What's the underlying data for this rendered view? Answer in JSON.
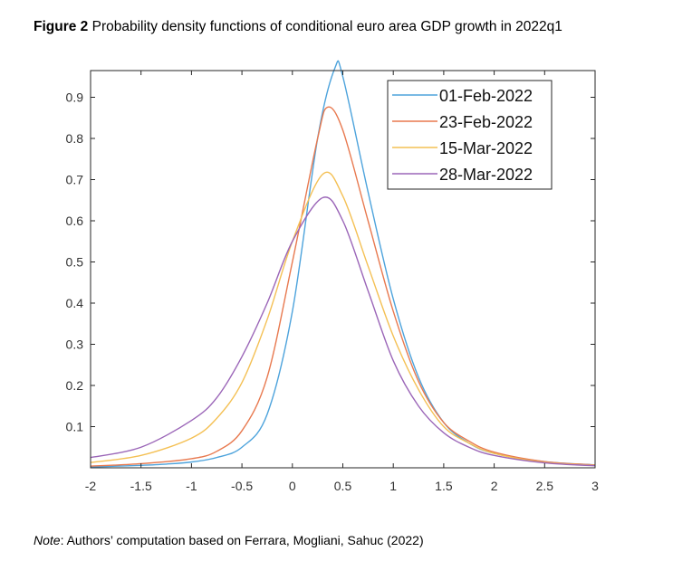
{
  "title": {
    "label": "Figure 2",
    "text": " Probability density functions of conditional euro area GDP growth in 2022q1"
  },
  "note": {
    "label": "Note",
    "text": ": Authors’ computation based on Ferrara, Mogliani, Sahuc (2022)"
  },
  "chart_data": {
    "type": "line",
    "title": "Probability density functions of conditional euro area GDP growth in 2022q1",
    "xlabel": "",
    "ylabel": "",
    "xlim": [
      -2,
      3
    ],
    "ylim": [
      0,
      0.965
    ],
    "xticks": [
      -2,
      -1.5,
      -1,
      -0.5,
      0,
      0.5,
      1,
      1.5,
      2,
      2.5,
      3
    ],
    "xtick_labels": [
      "-2",
      "-1.5",
      "-1",
      "-0.5",
      "0",
      "0.5",
      "1",
      "1.5",
      "2",
      "2.5",
      "3"
    ],
    "yticks": [
      0.1,
      0.2,
      0.3,
      0.4,
      0.5,
      0.6,
      0.7,
      0.8,
      0.9
    ],
    "ytick_labels": [
      "0.1",
      "0.2",
      "0.3",
      "0.4",
      "0.5",
      "0.6",
      "0.7",
      "0.8",
      "0.9"
    ],
    "grid": false,
    "legend_position": "top-right",
    "series": [
      {
        "name": "01-Feb-2022",
        "color": "#4da3dc",
        "x": [
          -2,
          -1.75,
          -1.5,
          -1.25,
          -1,
          -0.75,
          -0.5,
          -0.25,
          0,
          0.25,
          0.42,
          0.5,
          0.75,
          1,
          1.25,
          1.5,
          1.75,
          2,
          2.5,
          3
        ],
        "y": [
          0.002,
          0.004,
          0.006,
          0.009,
          0.014,
          0.025,
          0.05,
          0.13,
          0.38,
          0.8,
          0.97,
          0.95,
          0.67,
          0.41,
          0.22,
          0.11,
          0.06,
          0.035,
          0.015,
          0.007
        ]
      },
      {
        "name": "23-Feb-2022",
        "color": "#e8794f",
        "x": [
          -2,
          -1.5,
          -1,
          -0.75,
          -0.5,
          -0.25,
          0,
          0.25,
          0.35,
          0.5,
          0.75,
          1,
          1.25,
          1.5,
          1.75,
          2,
          2.5,
          3
        ],
        "y": [
          0.004,
          0.01,
          0.022,
          0.04,
          0.09,
          0.22,
          0.5,
          0.8,
          0.876,
          0.82,
          0.6,
          0.38,
          0.21,
          0.11,
          0.065,
          0.038,
          0.015,
          0.007
        ]
      },
      {
        "name": "15-Mar-2022",
        "color": "#f4c054",
        "x": [
          -2,
          -1.5,
          -1,
          -0.75,
          -0.5,
          -0.25,
          0,
          0.3,
          0.5,
          0.75,
          1,
          1.25,
          1.5,
          1.75,
          2,
          2.5,
          3
        ],
        "y": [
          0.013,
          0.03,
          0.072,
          0.12,
          0.207,
          0.36,
          0.55,
          0.713,
          0.66,
          0.49,
          0.32,
          0.19,
          0.1,
          0.06,
          0.035,
          0.013,
          0.006
        ]
      },
      {
        "name": "28-Mar-2022",
        "color": "#9b66b8",
        "x": [
          -2,
          -1.5,
          -1,
          -0.75,
          -0.5,
          -0.25,
          0,
          0.3,
          0.5,
          0.75,
          1,
          1.25,
          1.5,
          1.75,
          2,
          2.5,
          3
        ],
        "y": [
          0.025,
          0.05,
          0.115,
          0.17,
          0.27,
          0.4,
          0.55,
          0.656,
          0.6,
          0.43,
          0.26,
          0.15,
          0.085,
          0.05,
          0.03,
          0.012,
          0.005
        ]
      }
    ]
  }
}
